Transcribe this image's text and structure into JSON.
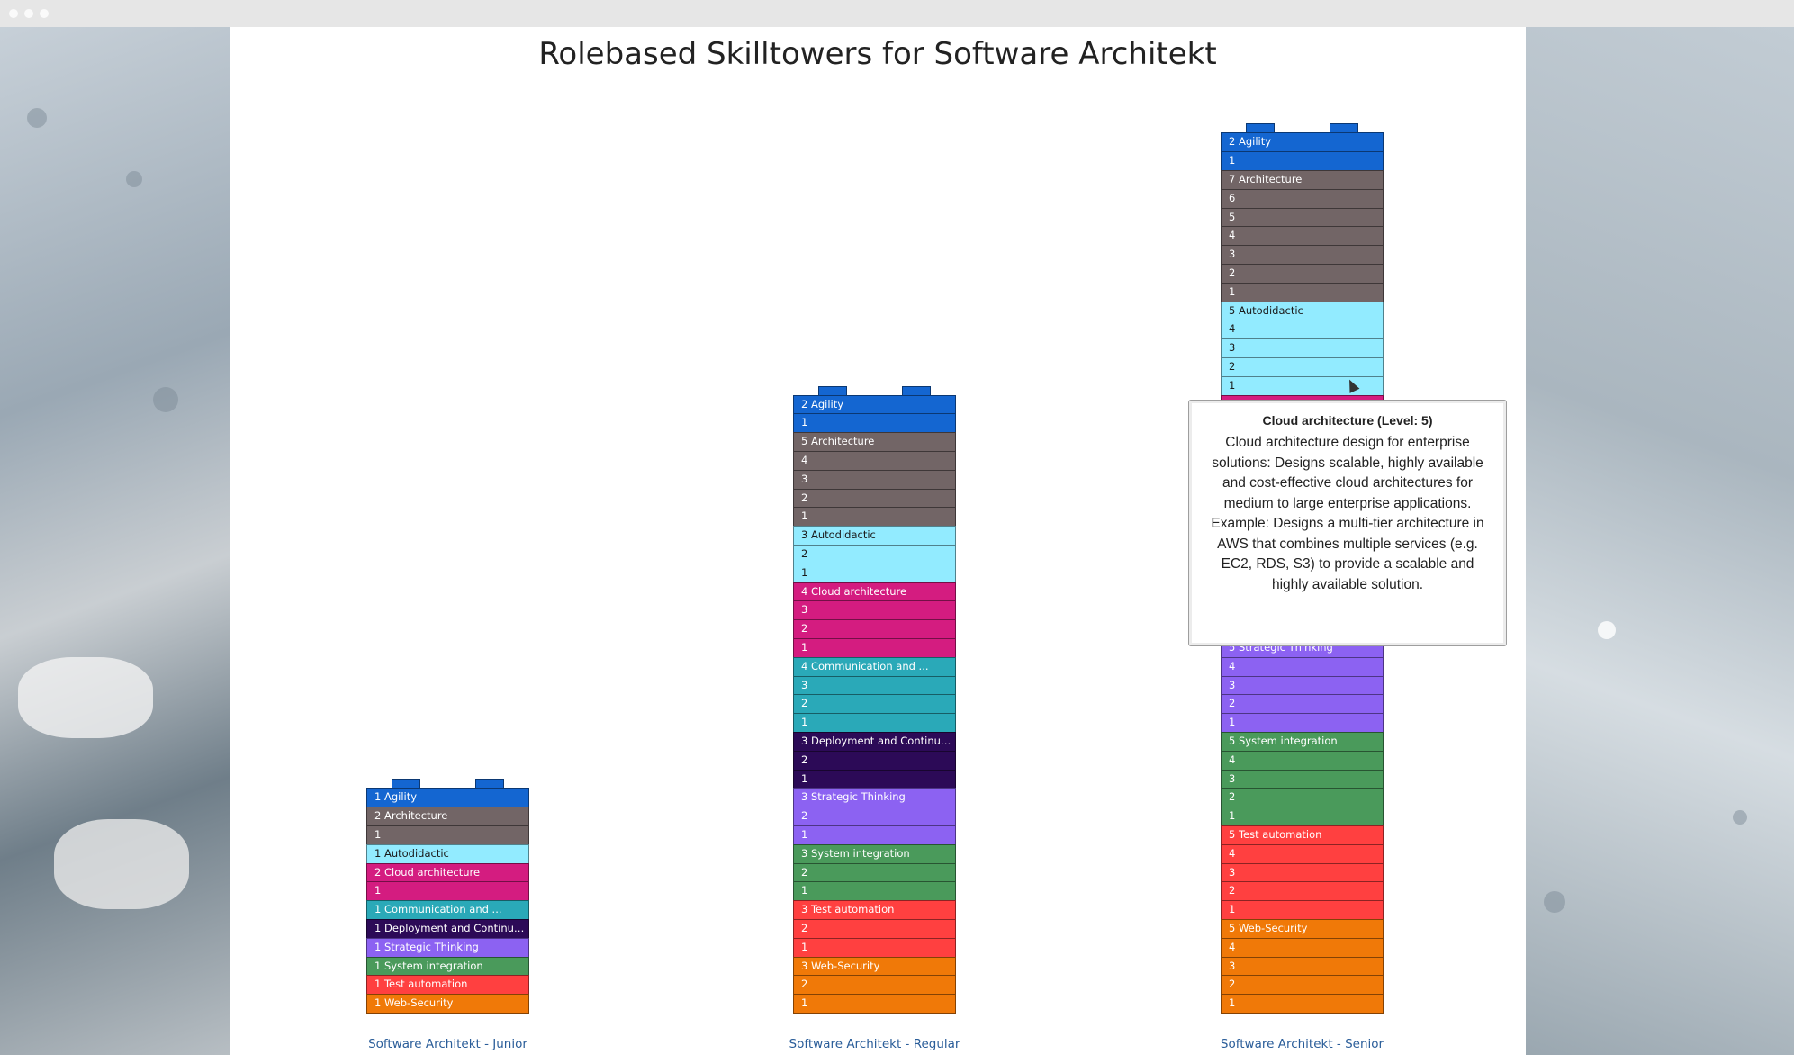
{
  "title": "Rolebased Skilltowers for Software Architekt",
  "colors": {
    "Agility": "#1466d1",
    "Architecture": "#726566",
    "Autodidactic": "#92ebff",
    "Cloud architecture": "#d41c80",
    "Communication and ...": "#2aa9b8",
    "Deployment and Continuous ...": "#2c0a57",
    "Strategic Thinking": "#8c62f2",
    "System integration": "#4a9a5b",
    "Test automation": "#ff4040",
    "Web-Security": "#f07908"
  },
  "text_dark_skills": [
    "Autodidactic"
  ],
  "chart_data": {
    "type": "stacked-tower",
    "title": "Rolebased Skilltowers for Software Architekt",
    "skills": [
      "Agility",
      "Architecture",
      "Autodidactic",
      "Cloud architecture",
      "Communication and ...",
      "Deployment and Continuous ...",
      "Strategic Thinking",
      "System integration",
      "Test automation",
      "Web-Security"
    ],
    "towers": [
      {
        "name": "Software Architekt - Junior",
        "levels": {
          "Agility": 1,
          "Architecture": 2,
          "Autodidactic": 1,
          "Cloud architecture": 2,
          "Communication and ...": 1,
          "Deployment and Continuous ...": 1,
          "Strategic Thinking": 1,
          "System integration": 1,
          "Test automation": 1,
          "Web-Security": 1
        }
      },
      {
        "name": "Software Architekt - Regular",
        "levels": {
          "Agility": 2,
          "Architecture": 5,
          "Autodidactic": 3,
          "Cloud architecture": 4,
          "Communication and ...": 4,
          "Deployment and Continuous ...": 3,
          "Strategic Thinking": 3,
          "System integration": 3,
          "Test automation": 3,
          "Web-Security": 3
        }
      },
      {
        "name": "Software Architekt - Senior",
        "levels": {
          "Agility": 2,
          "Architecture": 7,
          "Autodidactic": 5,
          "Cloud architecture": 6,
          "Communication and ...": 4,
          "Deployment and Continuous ...": 3,
          "Strategic Thinking": 5,
          "System integration": 5,
          "Test automation": 5,
          "Web-Security": 5
        }
      }
    ]
  },
  "tooltip": {
    "title": "Cloud architecture (Level: 5)",
    "text": "Cloud architecture design for enterprise solutions: Designs scalable, highly available and cost-effective cloud architectures for medium to large enterprise applications. Example: Designs a multi-tier architecture in AWS that combines multiple services (e.g. EC2, RDS, S3) to provide a scalable and highly available solution."
  }
}
